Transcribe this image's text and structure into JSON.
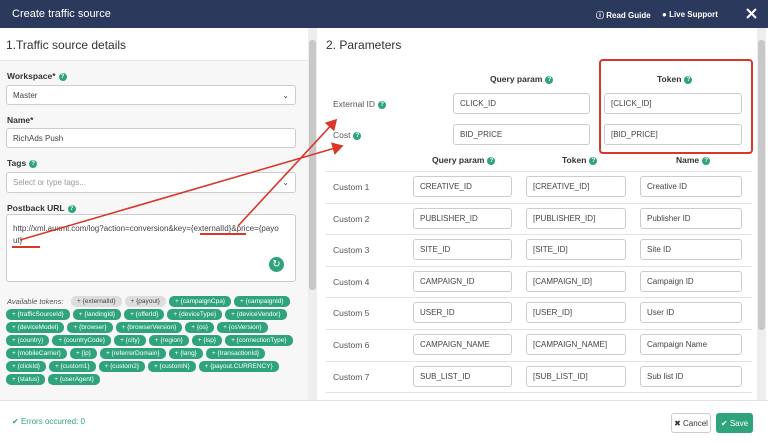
{
  "header": {
    "title": "Create traffic source",
    "links": [
      "Read Guide",
      "Live Support"
    ]
  },
  "left": {
    "title": "1.Traffic source details",
    "workspace": {
      "label": "Workspace*",
      "value": "Master"
    },
    "name": {
      "label": "Name*",
      "value": "RichAds Push"
    },
    "tags": {
      "label": "Tags",
      "placeholder": "Select or type tags..."
    },
    "postback": {
      "label": "Postback URL",
      "value": "http://xml.auxml.com/log?action=conversion&key={externalId}&price={payout}"
    },
    "tokens": {
      "label": "Available tokens:",
      "items": [
        "+ {externalId}",
        "+ {payout}",
        "+ {campaignCpa}",
        "+ {campaignId}",
        "+ {trafficSourceId}",
        "+ {landingId}",
        "+ {offerId}",
        "+ {deviceType}",
        "+ {deviceVendor}",
        "+ {deviceModel}",
        "+ {browser}",
        "+ {browserVersion}",
        "+ {os}",
        "+ {osVersion}",
        "+ {country}",
        "+ {countryCode}",
        "+ {city}",
        "+ {region}",
        "+ {isp}",
        "+ {connectionType}",
        "+ {mobileCarrier}",
        "+ {ip}",
        "+ {referrerDomain}",
        "+ {lang}",
        "+ {transactionId}",
        "+ {clickId}",
        "+ {custom1}",
        "+ {custom2}",
        "+ {customN}",
        "+ {payout.CURRENCY}",
        "+ {status}",
        "+ {userAgent}"
      ]
    }
  },
  "right": {
    "title": "2. Parameters",
    "main": {
      "columns": [
        "Query param",
        "Token"
      ],
      "rows": [
        {
          "label": "External ID",
          "query": "CLICK_ID",
          "token": "[CLICK_ID]"
        },
        {
          "label": "Cost",
          "query": "BID_PRICE",
          "token": "[BID_PRICE]"
        }
      ]
    },
    "custom": {
      "columns": [
        "Query param",
        "Token",
        "Name"
      ],
      "rows": [
        {
          "label": "Custom 1",
          "query": "CREATIVE_ID",
          "token": "[CREATIVE_ID]",
          "name": "Creative ID"
        },
        {
          "label": "Custom 2",
          "query": "PUBLISHER_ID",
          "token": "[PUBLISHER_ID]",
          "name": "Publisher ID"
        },
        {
          "label": "Custom 3",
          "query": "SITE_ID",
          "token": "[SITE_ID]",
          "name": "Site ID"
        },
        {
          "label": "Custom 4",
          "query": "CAMPAIGN_ID",
          "token": "[CAMPAIGN_ID]",
          "name": "Campaign ID"
        },
        {
          "label": "Custom 5",
          "query": "USER_ID",
          "token": "[USER_ID]",
          "name": "User ID"
        },
        {
          "label": "Custom 6",
          "query": "CAMPAIGN_NAME",
          "token": "[CAMPAIGN_NAME]",
          "name": "Campaign Name"
        },
        {
          "label": "Custom 7",
          "query": "SUB_LIST_ID",
          "token": "[SUB_LIST_ID]",
          "name": "Sub list ID"
        }
      ]
    }
  },
  "footer": {
    "status": "Errors occurred: 0",
    "buttons": [
      "Cancel",
      "Save"
    ]
  }
}
